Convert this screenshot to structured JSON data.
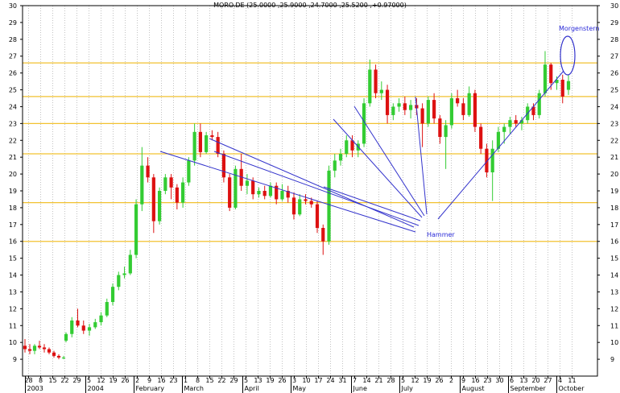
{
  "chart_data": {
    "type": "candlestick",
    "title": "MORO.DE (25.0000 ,25.9000 ,24.7000 ,25.5200 ,+0.97000)",
    "ylim": [
      8,
      30
    ],
    "y_ticks": [
      9,
      10,
      11,
      12,
      13,
      14,
      15,
      16,
      17,
      18,
      19,
      20,
      21,
      22,
      23,
      24,
      25,
      26,
      27,
      28,
      29,
      30
    ],
    "grid": "vertical dotted",
    "x_tick_labels": [
      "28",
      "8",
      "15",
      "22",
      "29",
      "5",
      "12",
      "19",
      "26",
      "2",
      "9",
      "16",
      "23",
      "1",
      "8",
      "15",
      "22",
      "29",
      "5",
      "13",
      "19",
      "26",
      "3",
      "10",
      "17",
      "24",
      "31",
      "7",
      "14",
      "21",
      "28",
      "5",
      "12",
      "19",
      "26",
      "2",
      "9",
      "16",
      "23",
      "30",
      "6",
      "13",
      "20",
      "27",
      "4",
      "11"
    ],
    "month_labels": [
      {
        "label": "2003",
        "tick": 0
      },
      {
        "label": "2004",
        "tick": 5
      },
      {
        "label": "February",
        "tick": 9
      },
      {
        "label": "March",
        "tick": 13
      },
      {
        "label": "April",
        "tick": 18
      },
      {
        "label": "May",
        "tick": 22
      },
      {
        "label": "June",
        "tick": 27
      },
      {
        "label": "July",
        "tick": 31
      },
      {
        "label": "August",
        "tick": 36
      },
      {
        "label": "September",
        "tick": 40
      },
      {
        "label": "October",
        "tick": 44
      }
    ],
    "horizontal_levels": [
      16.0,
      18.3,
      21.2,
      23.0,
      24.6,
      26.6
    ],
    "level_color": "#f2c230",
    "up_color": "#33cc33",
    "down_color": "#dd1111",
    "annotations": [
      {
        "text": "Hammer",
        "color": "#2a2ad8"
      },
      {
        "text": "Morgenstern",
        "color": "#2a2ad8"
      }
    ],
    "series": [
      {
        "name": "",
        "ohlc": [
          [
            9.8,
            10.2,
            9.4,
            9.6
          ],
          [
            9.6,
            9.9,
            9.3,
            9.5
          ],
          [
            9.5,
            9.9,
            9.3,
            9.8
          ],
          [
            9.8,
            10.1,
            9.6,
            9.7
          ],
          [
            9.7,
            9.9,
            9.4,
            9.6
          ],
          [
            9.6,
            9.7,
            9.3,
            9.4
          ],
          [
            9.4,
            9.5,
            9.1,
            9.2
          ],
          [
            9.2,
            9.3,
            9.0,
            9.1
          ],
          [
            9.1,
            9.2,
            9.0,
            9.1
          ],
          [
            10.1,
            10.6,
            10.0,
            10.5
          ],
          [
            10.5,
            11.5,
            10.3,
            11.3
          ],
          [
            11.3,
            12.0,
            10.9,
            11.0
          ],
          [
            11.0,
            11.3,
            10.5,
            10.7
          ],
          [
            10.7,
            11.1,
            10.4,
            10.9
          ],
          [
            10.9,
            11.4,
            10.8,
            11.2
          ],
          [
            11.2,
            11.8,
            11.0,
            11.6
          ],
          [
            11.6,
            12.6,
            11.5,
            12.4
          ],
          [
            12.4,
            13.5,
            12.2,
            13.3
          ],
          [
            13.3,
            14.2,
            13.1,
            14.0
          ],
          [
            14.0,
            14.5,
            13.8,
            14.1
          ],
          [
            14.1,
            15.5,
            14.0,
            15.2
          ],
          [
            15.2,
            18.5,
            15.0,
            18.2
          ],
          [
            18.2,
            21.6,
            17.8,
            20.5
          ],
          [
            20.5,
            21.0,
            19.5,
            19.8
          ],
          [
            19.8,
            20.0,
            16.5,
            17.2
          ],
          [
            17.2,
            19.2,
            17.0,
            19.0
          ],
          [
            19.0,
            20.0,
            18.8,
            19.8
          ],
          [
            19.8,
            20.0,
            18.5,
            19.2
          ],
          [
            19.2,
            19.4,
            17.9,
            18.3
          ],
          [
            18.3,
            19.8,
            18.0,
            19.5
          ],
          [
            19.5,
            21.0,
            19.3,
            20.8
          ],
          [
            20.8,
            23.0,
            20.5,
            22.5
          ],
          [
            22.5,
            23.0,
            21.0,
            21.3
          ],
          [
            21.3,
            22.5,
            21.2,
            22.3
          ],
          [
            22.3,
            22.6,
            22.0,
            22.2
          ],
          [
            22.2,
            22.5,
            21.0,
            21.2
          ],
          [
            21.2,
            21.4,
            19.5,
            19.8
          ],
          [
            19.8,
            20.0,
            17.8,
            18.0
          ],
          [
            18.0,
            20.5,
            17.9,
            20.3
          ],
          [
            20.3,
            21.2,
            19.0,
            19.3
          ],
          [
            19.3,
            20.0,
            18.8,
            19.6
          ],
          [
            19.6,
            19.8,
            18.5,
            18.8
          ],
          [
            18.8,
            19.2,
            18.6,
            19.0
          ],
          [
            19.0,
            19.3,
            18.5,
            18.7
          ],
          [
            18.7,
            19.5,
            18.6,
            19.3
          ],
          [
            19.3,
            19.5,
            18.2,
            18.5
          ],
          [
            18.5,
            19.4,
            18.4,
            19.0
          ],
          [
            19.0,
            19.3,
            18.3,
            18.6
          ],
          [
            18.6,
            18.9,
            17.3,
            17.6
          ],
          [
            17.6,
            18.8,
            17.5,
            18.5
          ],
          [
            18.5,
            18.8,
            18.2,
            18.4
          ],
          [
            18.4,
            18.6,
            18.0,
            18.2
          ],
          [
            18.2,
            18.4,
            16.5,
            16.8
          ],
          [
            16.8,
            17.0,
            15.2,
            16.0
          ],
          [
            16.0,
            20.5,
            15.8,
            20.2
          ],
          [
            20.2,
            21.2,
            19.8,
            20.8
          ],
          [
            20.8,
            21.5,
            20.5,
            21.2
          ],
          [
            21.2,
            22.3,
            21.0,
            22.0
          ],
          [
            22.0,
            22.3,
            21.0,
            21.4
          ],
          [
            21.4,
            22.0,
            21.0,
            21.8
          ],
          [
            21.8,
            24.5,
            21.6,
            24.2
          ],
          [
            24.2,
            26.8,
            24.0,
            26.2
          ],
          [
            26.2,
            26.5,
            24.5,
            24.8
          ],
          [
            24.8,
            25.5,
            24.4,
            25.0
          ],
          [
            25.0,
            25.3,
            23.0,
            23.5
          ],
          [
            23.5,
            24.2,
            23.2,
            24.0
          ],
          [
            24.0,
            24.5,
            23.7,
            24.2
          ],
          [
            24.2,
            24.6,
            23.5,
            23.8
          ],
          [
            23.8,
            24.4,
            23.3,
            24.1
          ],
          [
            24.1,
            24.5,
            23.5,
            23.9
          ],
          [
            23.9,
            24.2,
            21.6,
            23.0
          ],
          [
            23.0,
            24.6,
            22.8,
            24.4
          ],
          [
            24.4,
            24.8,
            23.0,
            23.3
          ],
          [
            23.3,
            23.5,
            21.8,
            22.2
          ],
          [
            22.2,
            23.2,
            20.3,
            22.9
          ],
          [
            22.9,
            24.8,
            22.7,
            24.5
          ],
          [
            24.5,
            25.0,
            24.0,
            24.2
          ],
          [
            24.2,
            24.5,
            23.2,
            23.5
          ],
          [
            23.5,
            25.2,
            23.4,
            24.8
          ],
          [
            24.8,
            25.0,
            22.5,
            22.8
          ],
          [
            22.8,
            23.0,
            21.2,
            21.5
          ],
          [
            21.5,
            21.8,
            19.8,
            20.1
          ],
          [
            20.1,
            22.0,
            18.4,
            21.5
          ],
          [
            21.5,
            22.8,
            21.3,
            22.5
          ],
          [
            22.5,
            23.0,
            21.8,
            22.8
          ],
          [
            22.8,
            23.4,
            22.4,
            23.2
          ],
          [
            23.2,
            23.5,
            22.8,
            23.0
          ],
          [
            23.0,
            23.4,
            22.6,
            23.2
          ],
          [
            23.2,
            24.2,
            23.0,
            24.0
          ],
          [
            24.0,
            24.2,
            23.2,
            23.5
          ],
          [
            23.5,
            25.0,
            23.3,
            24.8
          ],
          [
            24.8,
            27.3,
            24.6,
            26.5
          ],
          [
            26.5,
            26.6,
            25.0,
            25.4
          ],
          [
            25.4,
            25.8,
            25.0,
            25.6
          ],
          [
            25.6,
            25.9,
            24.2,
            24.6
          ],
          [
            25.0,
            25.9,
            24.7,
            25.52
          ]
        ]
      }
    ]
  }
}
